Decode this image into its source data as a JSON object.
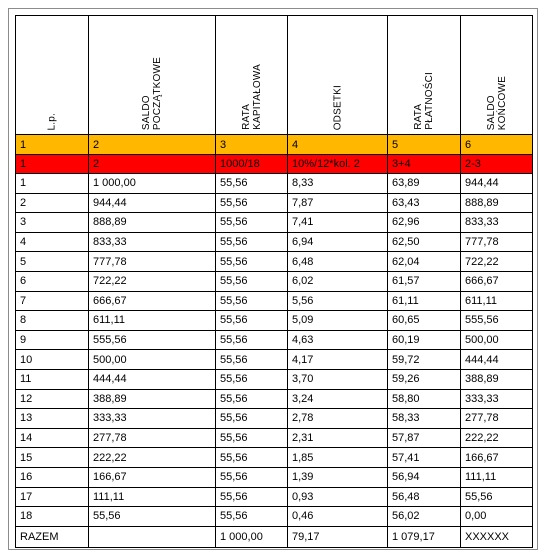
{
  "headers": [
    [
      "L.p."
    ],
    [
      "SALDO",
      "POCZĄTKOWE"
    ],
    [
      "RATA",
      "KAPITAŁOWA"
    ],
    [
      "ODSETKI"
    ],
    [
      "RATA",
      "PŁATNOŚCI"
    ],
    [
      "SALDO",
      "KOŃCOWE"
    ]
  ],
  "column_numbers": [
    "1",
    "2",
    "3",
    "4",
    "5",
    "6"
  ],
  "formulas": [
    "1",
    "2",
    "1000/18",
    "10%/12*kol. 2",
    "3+4",
    "2-3"
  ],
  "rows": [
    [
      "1",
      "1 000,00",
      "55,56",
      "8,33",
      "63,89",
      "944,44"
    ],
    [
      "2",
      "944,44",
      "55,56",
      "7,87",
      "63,43",
      "888,89"
    ],
    [
      "3",
      "888,89",
      "55,56",
      "7,41",
      "62,96",
      "833,33"
    ],
    [
      "4",
      "833,33",
      "55,56",
      "6,94",
      "62,50",
      "777,78"
    ],
    [
      "5",
      "777,78",
      "55,56",
      "6,48",
      "62,04",
      "722,22"
    ],
    [
      "6",
      "722,22",
      "55,56",
      "6,02",
      "61,57",
      "666,67"
    ],
    [
      "7",
      "666,67",
      "55,56",
      "5,56",
      "61,11",
      "611,11"
    ],
    [
      "8",
      "611,11",
      "55,56",
      "5,09",
      "60,65",
      "555,56"
    ],
    [
      "9",
      "555,56",
      "55,56",
      "4,63",
      "60,19",
      "500,00"
    ],
    [
      "10",
      "500,00",
      "55,56",
      "4,17",
      "59,72",
      "444,44"
    ],
    [
      "11",
      "444,44",
      "55,56",
      "3,70",
      "59,26",
      "388,89"
    ],
    [
      "12",
      "388,89",
      "55,56",
      "3,24",
      "58,80",
      "333,33"
    ],
    [
      "13",
      "333,33",
      "55,56",
      "2,78",
      "58,33",
      "277,78"
    ],
    [
      "14",
      "277,78",
      "55,56",
      "2,31",
      "57,87",
      "222,22"
    ],
    [
      "15",
      "222,22",
      "55,56",
      "1,85",
      "57,41",
      "166,67"
    ],
    [
      "16",
      "166,67",
      "55,56",
      "1,39",
      "56,94",
      "111,11"
    ],
    [
      "17",
      "111,11",
      "55,56",
      "0,93",
      "56,48",
      "55,56"
    ],
    [
      "18",
      "55,56",
      "55,56",
      "0,46",
      "56,02",
      "0,00"
    ]
  ],
  "totals": [
    "RAZEM",
    "",
    "1 000,00",
    "79,17",
    "1 079,17",
    "XXXXXX"
  ],
  "colors": {
    "number_row": "#ffb700",
    "formula_row": "#ff0000"
  }
}
